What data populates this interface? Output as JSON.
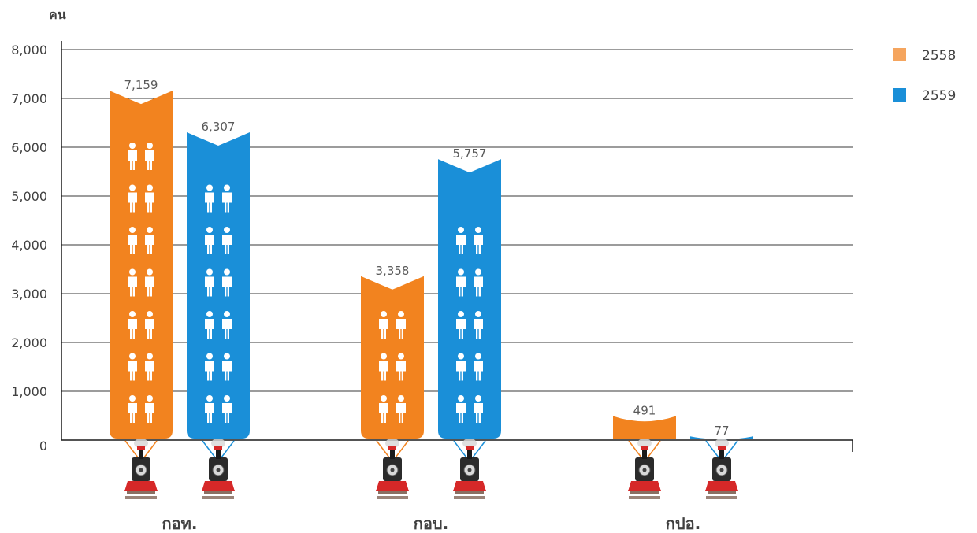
{
  "chart_data": {
    "type": "bar",
    "unit_label": "คน",
    "categories": [
      "กอท.",
      "กอบ.",
      "กปอ."
    ],
    "series": [
      {
        "name": "2558",
        "values": [
          7159,
          3358,
          491
        ],
        "labels": [
          "7,159",
          "3,358",
          "491"
        ]
      },
      {
        "name": "2559",
        "values": [
          6307,
          5757,
          77
        ],
        "labels": [
          "6,307",
          "5,757",
          "77"
        ]
      }
    ],
    "ylim": [
      0,
      8000
    ],
    "yticks": [
      0,
      1000,
      2000,
      3000,
      4000,
      5000,
      6000,
      7000,
      8000
    ],
    "ytick_labels": [
      "0",
      "1,000",
      "2,000",
      "3,000",
      "4,000",
      "5,000",
      "6,000",
      "7,000",
      "8,000"
    ],
    "grid": true,
    "legend_position": "top-right",
    "icons": {
      "bar_pictogram": "person-pair-icon",
      "category_base": "train-icon"
    }
  },
  "colors": {
    "2558": "#f2831f",
    "2559": "#1a8fd8",
    "legend_2558": "#f5a55e",
    "grid": "#3a3a3a"
  }
}
